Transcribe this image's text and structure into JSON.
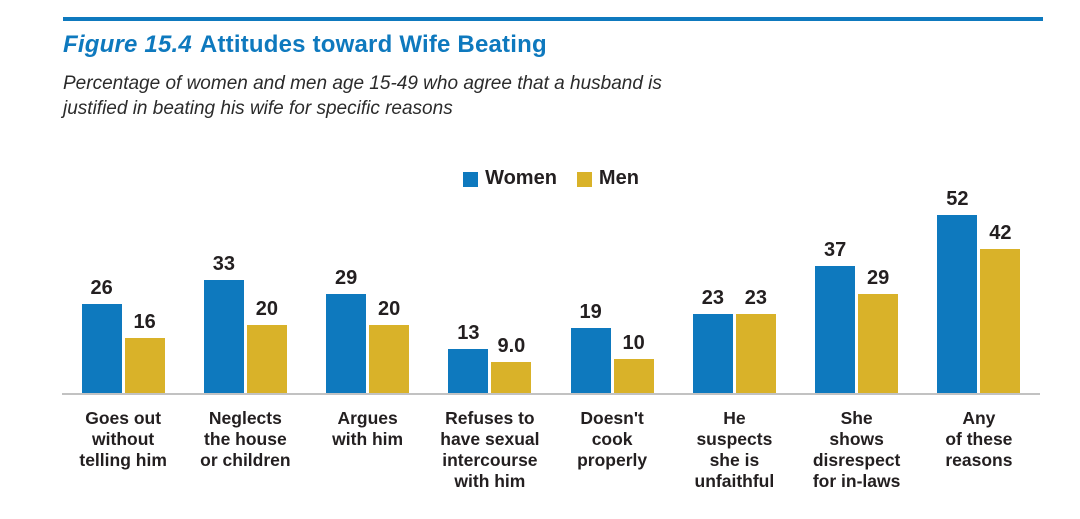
{
  "figure": {
    "label": "Figure 15.4",
    "title": "Attitudes toward Wife Beating",
    "subtitle_line1": "Percentage of women and men age 15-49 who agree that a husband is",
    "subtitle_line2": "justified in beating his wife for specific reasons"
  },
  "colors": {
    "accent_blue": "#0e79be",
    "accent_gold": "#d9b229",
    "axis_gray": "#c2c2c2",
    "text_dark": "#231f20"
  },
  "chart_data": {
    "type": "bar",
    "title": "Figure 15.4 Attitudes toward Wife Beating",
    "subtitle": "Percentage of women and men age 15-49 who agree that a husband is justified in beating his wife for specific reasons",
    "categories": [
      "Goes out\nwithout\ntelling him",
      "Neglects\nthe house\nor children",
      "Argues\nwith him",
      "Refuses to\nhave sexual\nintercourse\nwith him",
      "Doesn't\ncook\nproperly",
      "He\nsuspects\nshe is\nunfaithful",
      "She\nshows\ndisrespect\nfor in-laws",
      "Any\nof these\nreasons"
    ],
    "series": [
      {
        "name": "Women",
        "color": "#0e79be",
        "values": [
          26,
          33,
          29,
          13,
          19,
          23,
          37,
          52
        ],
        "display_values": [
          "26",
          "33",
          "29",
          "13",
          "19",
          "23",
          "37",
          "52"
        ]
      },
      {
        "name": "Men",
        "color": "#d9b229",
        "values": [
          16,
          20,
          20,
          9.0,
          10,
          23,
          29,
          42
        ],
        "display_values": [
          "16",
          "20",
          "20",
          "9.0",
          "10",
          "23",
          "29",
          "42"
        ]
      }
    ],
    "xlabel": "",
    "ylabel": "",
    "ylim": [
      0,
      58
    ],
    "value_axis_visible": false,
    "grid": false,
    "legend_position": "top-center",
    "bar_value_labels": true
  }
}
